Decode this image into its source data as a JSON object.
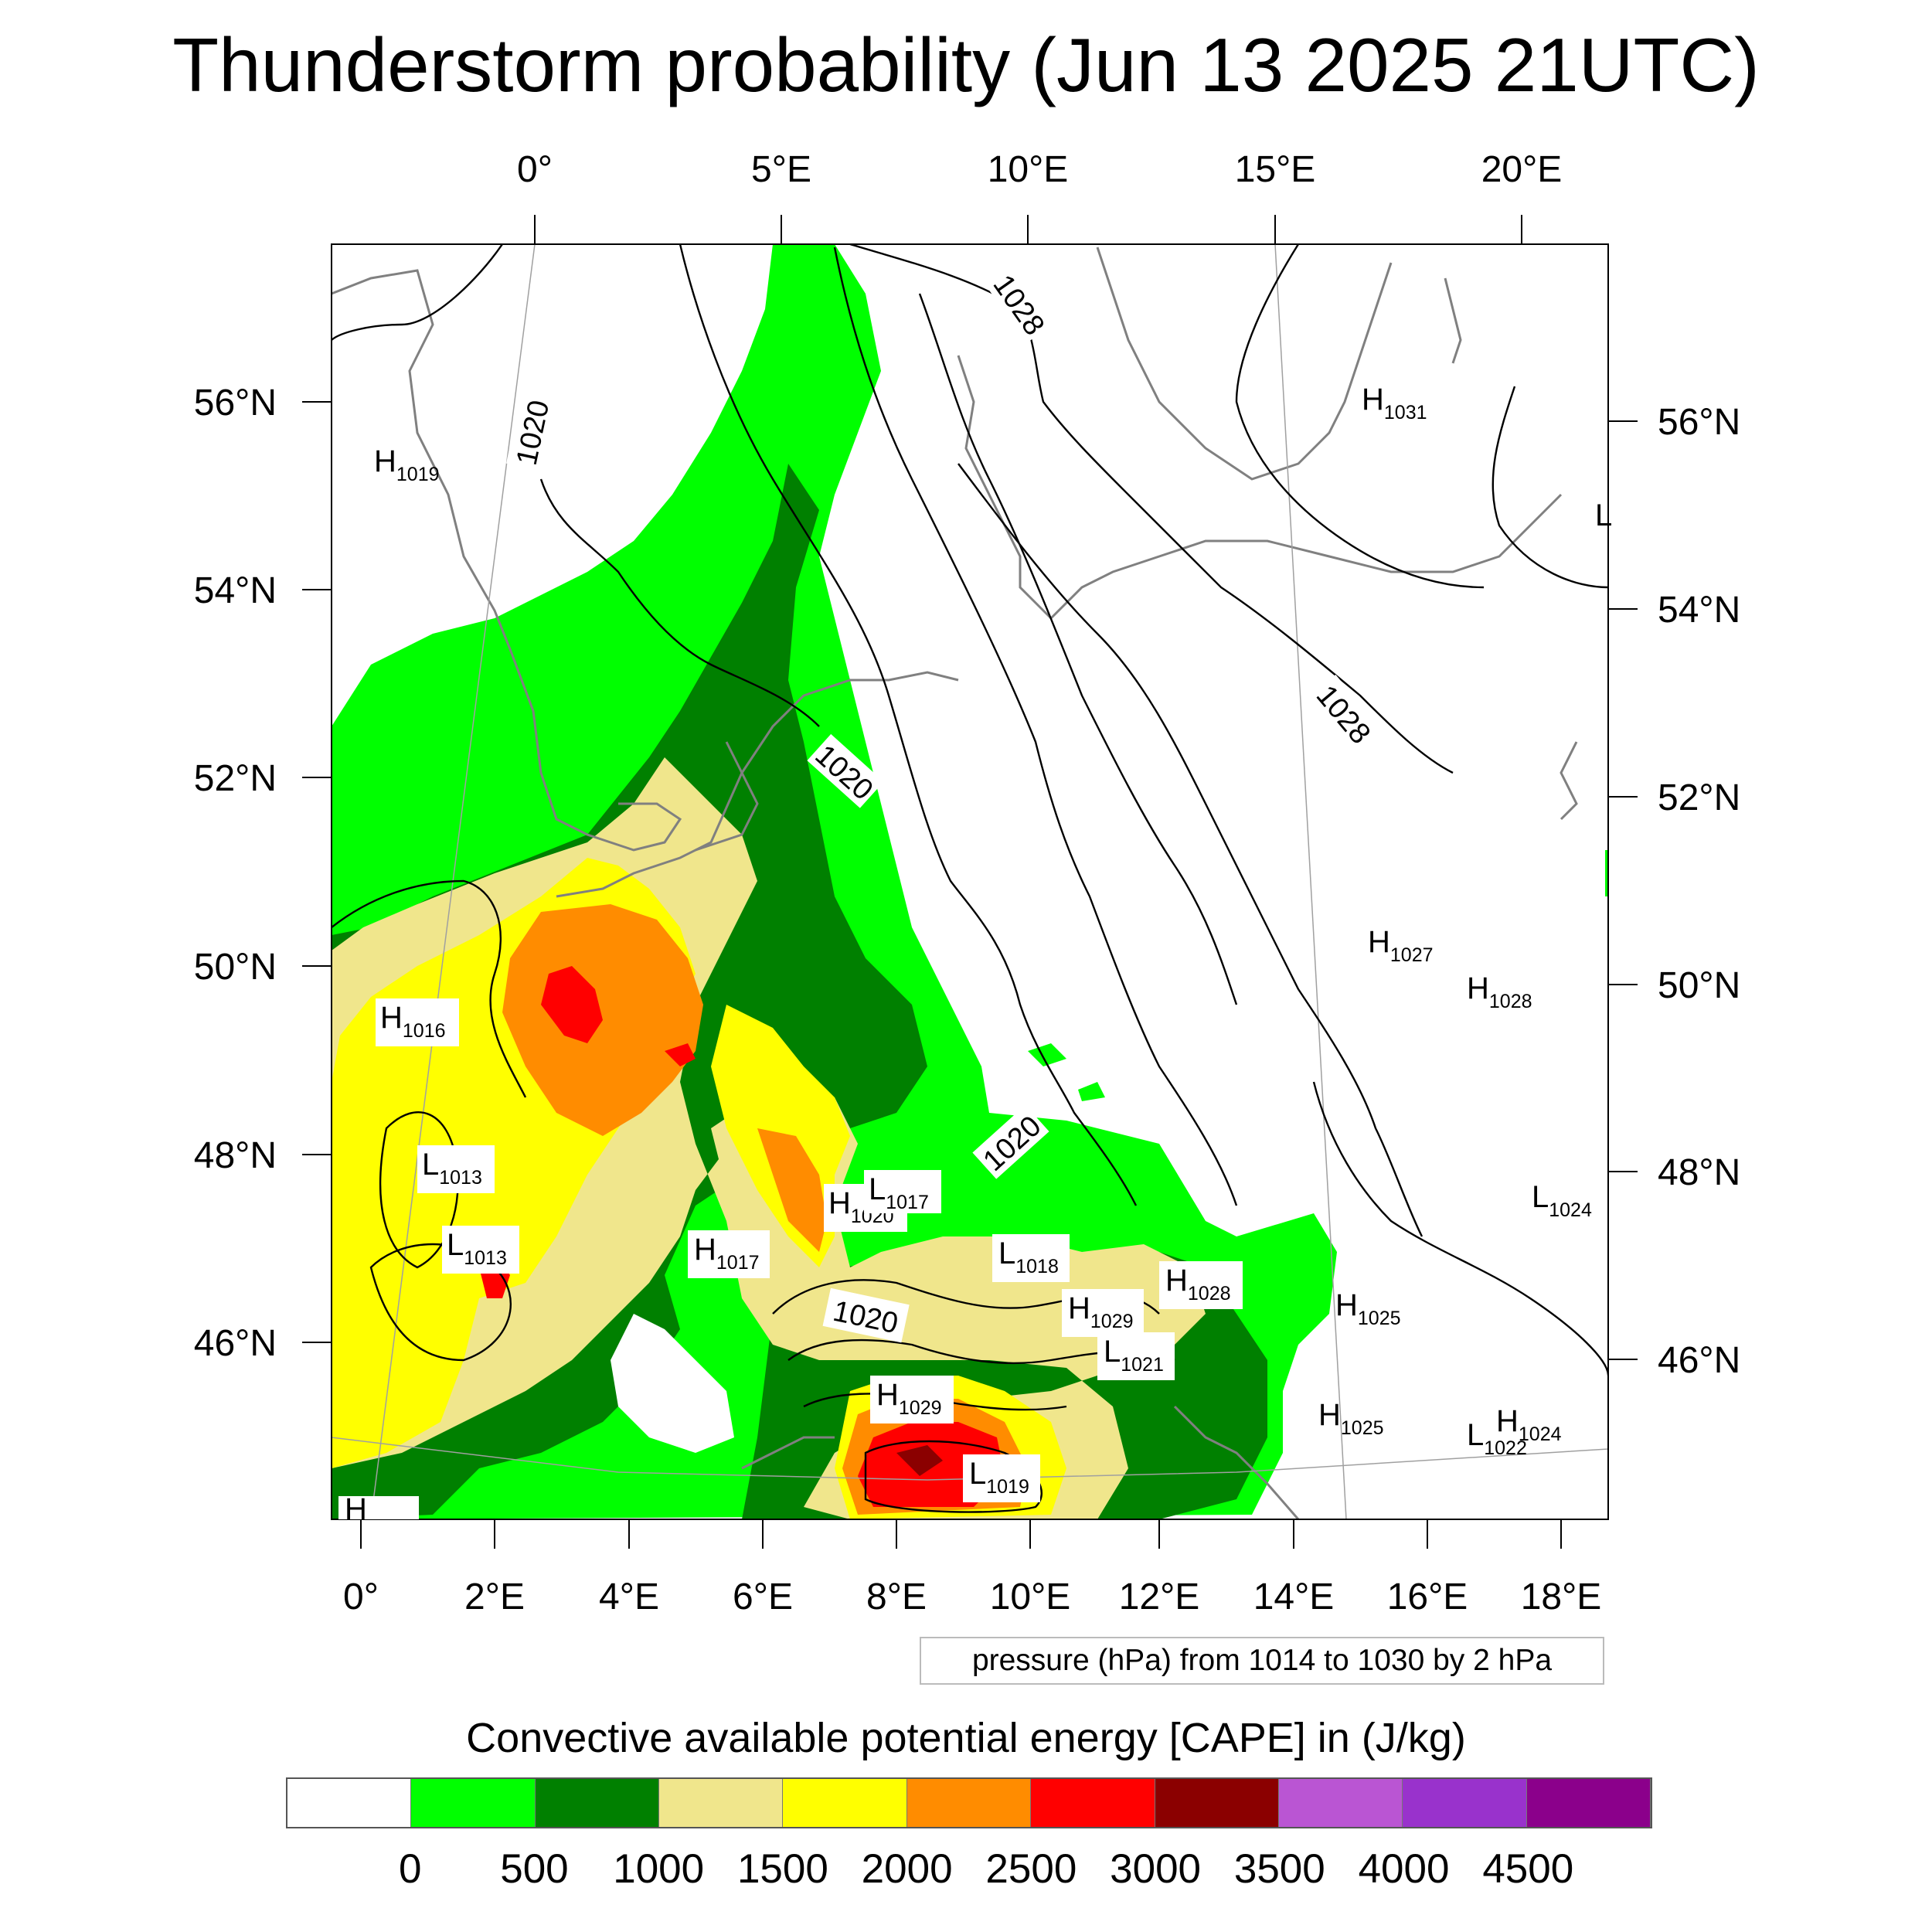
{
  "title": "Thunderstorm probability (Jun 13 2025 21UTC)",
  "top_lon_labels": [
    "0°",
    "5°E",
    "10°E",
    "15°E",
    "20°E"
  ],
  "left_lat_labels": [
    "56°N",
    "54°N",
    "52°N",
    "50°N",
    "48°N",
    "46°N"
  ],
  "right_lat_labels": [
    "56°N",
    "54°N",
    "52°N",
    "50°N",
    "48°N",
    "46°N"
  ],
  "bottom_lon_labels": [
    "0°",
    "2°E",
    "4°E",
    "6°E",
    "8°E",
    "10°E",
    "12°E",
    "14°E",
    "16°E",
    "18°E"
  ],
  "pressure_note": "pressure (hPa) from 1014 to 1030 by 2 hPa",
  "colorbar": {
    "title": "Convective available potential energy [CAPE] in (J/kg)",
    "colors": [
      "#ffffff",
      "#00ff00",
      "#008000",
      "#f0e68c",
      "#ffff00",
      "#ff8c00",
      "#ff0000",
      "#8b0000",
      "#ba55d3",
      "#9932cc",
      "#8b008b"
    ],
    "ticks": [
      "0",
      "500",
      "1000",
      "1500",
      "2000",
      "2500",
      "3000",
      "3500",
      "4000",
      "4500"
    ]
  },
  "isobar_labels": [
    "1020",
    "1028",
    "1028",
    "1020",
    "1020",
    "1020"
  ],
  "pressure_centers": [
    {
      "type": "H",
      "value": "1019"
    },
    {
      "type": "H",
      "value": "1031"
    },
    {
      "type": "H",
      "value": "1016"
    },
    {
      "type": "L",
      "value": "1013"
    },
    {
      "type": "L",
      "value": "1013"
    },
    {
      "type": "H",
      "value": "1017"
    },
    {
      "type": "H",
      "value": "1020"
    },
    {
      "type": "L",
      "value": "1017"
    },
    {
      "type": "L",
      "value": "1018"
    },
    {
      "type": "H",
      "value": "1029"
    },
    {
      "type": "H",
      "value": "1028"
    },
    {
      "type": "L",
      "value": "1021"
    },
    {
      "type": "H",
      "value": "1029"
    },
    {
      "type": "L",
      "value": "1019"
    },
    {
      "type": "H",
      "value": "1025"
    },
    {
      "type": "H",
      "value": "1025"
    },
    {
      "type": "H",
      "value": "1027"
    },
    {
      "type": "H",
      "value": "1028"
    },
    {
      "type": "L",
      "value": "1024"
    },
    {
      "type": "L",
      "value": "1022"
    },
    {
      "type": "H",
      "value": "1024"
    },
    {
      "type": "L",
      "value": ""
    },
    {
      "type": "H",
      "value": ""
    }
  ]
}
